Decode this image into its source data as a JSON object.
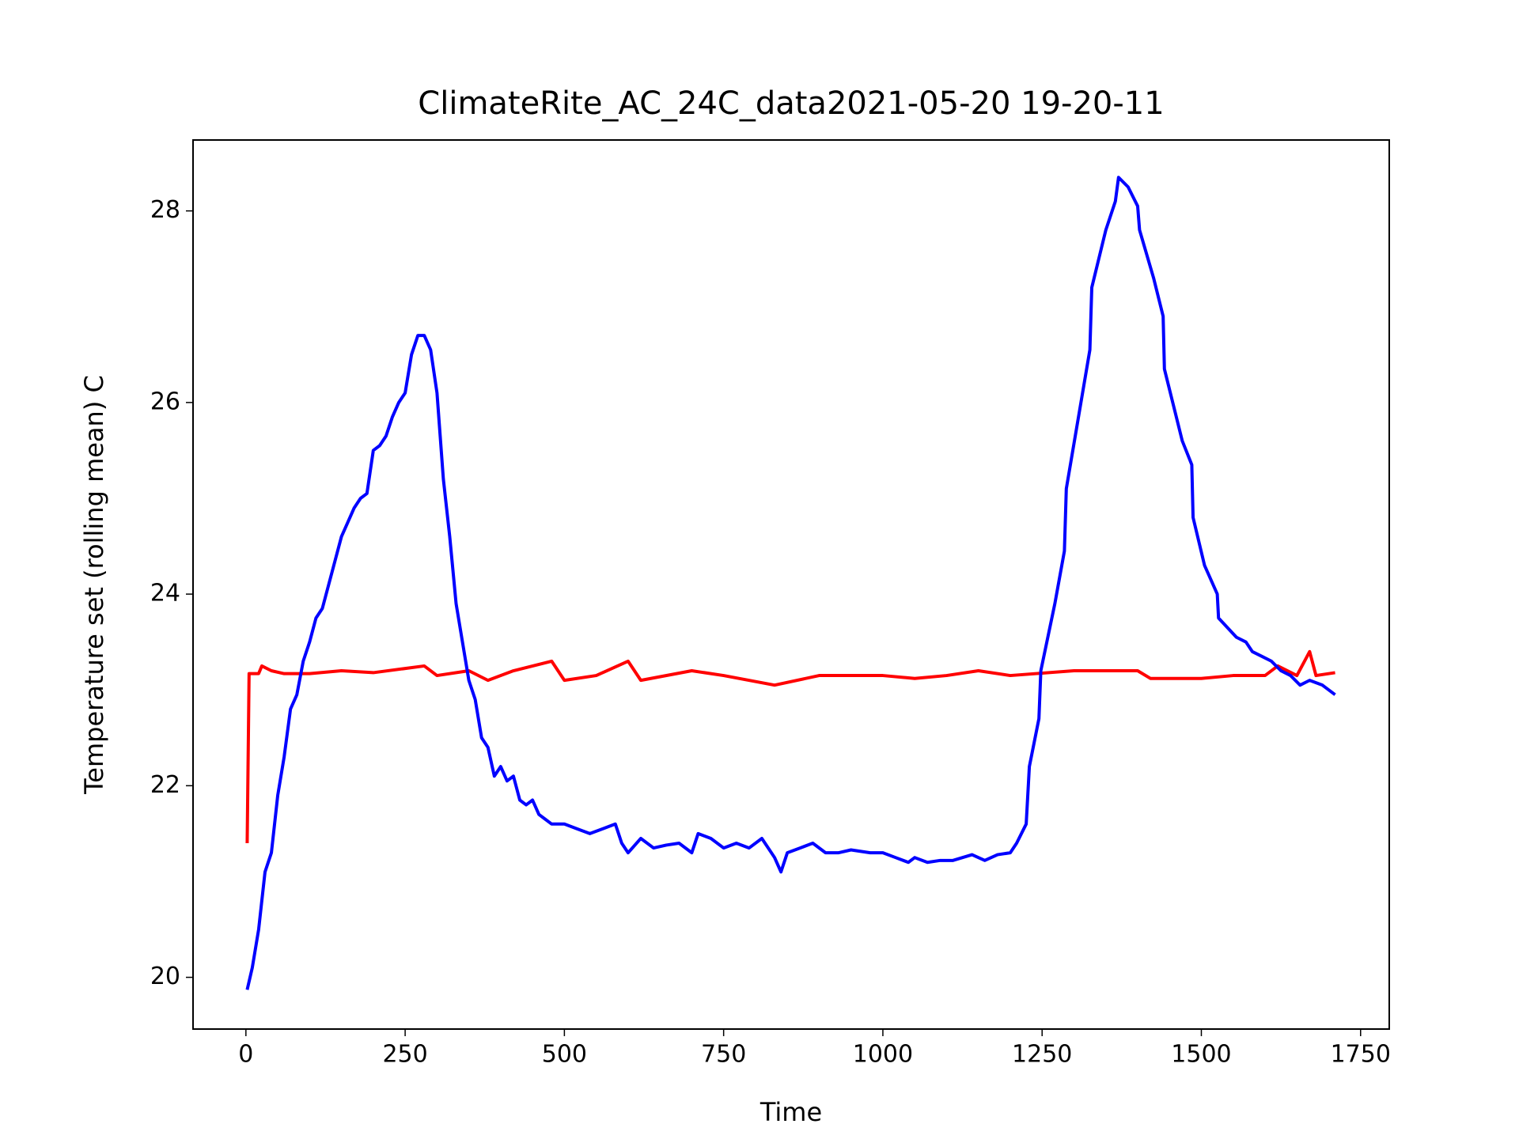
{
  "chart_data": {
    "type": "line",
    "title": "ClimateRite_AC_24C_data2021-05-20 19-20-11",
    "x_label": "Time",
    "y_label": "Temperature set (rolling mean) C",
    "xlim": [
      -83,
      1795
    ],
    "ylim": [
      19.46,
      28.74
    ],
    "xticks": [
      0,
      250,
      500,
      750,
      1000,
      1250,
      1500,
      1750
    ],
    "yticks": [
      20,
      22,
      24,
      26,
      28
    ],
    "series": [
      {
        "color": "#ff0000",
        "x": [
          2,
          5,
          20,
          25,
          40,
          60,
          100,
          150,
          200,
          280,
          300,
          350,
          380,
          420,
          480,
          500,
          550,
          600,
          620,
          700,
          750,
          830,
          900,
          1000,
          1050,
          1100,
          1150,
          1200,
          1300,
          1400,
          1420,
          1500,
          1550,
          1600,
          1620,
          1650,
          1670,
          1680,
          1710
        ],
        "values": [
          21.4,
          23.17,
          23.17,
          23.25,
          23.2,
          23.17,
          23.17,
          23.2,
          23.18,
          23.25,
          23.15,
          23.2,
          23.1,
          23.2,
          23.3,
          23.1,
          23.15,
          23.3,
          23.1,
          23.2,
          23.15,
          23.05,
          23.15,
          23.15,
          23.12,
          23.15,
          23.2,
          23.15,
          23.2,
          23.2,
          23.12,
          23.12,
          23.15,
          23.15,
          23.25,
          23.15,
          23.4,
          23.15,
          23.18
        ]
      },
      {
        "color": "#0000ff",
        "x": [
          2,
          10,
          20,
          30,
          40,
          50,
          60,
          70,
          80,
          90,
          100,
          110,
          120,
          130,
          140,
          150,
          160,
          170,
          180,
          190,
          200,
          210,
          220,
          230,
          240,
          250,
          260,
          270,
          280,
          290,
          300,
          310,
          320,
          330,
          340,
          350,
          360,
          370,
          380,
          390,
          400,
          410,
          420,
          430,
          440,
          450,
          460,
          470,
          480,
          500,
          520,
          540,
          560,
          580,
          590,
          600,
          620,
          640,
          660,
          680,
          700,
          710,
          730,
          750,
          770,
          790,
          810,
          830,
          840,
          850,
          870,
          890,
          910,
          930,
          950,
          980,
          1000,
          1020,
          1040,
          1050,
          1070,
          1090,
          1110,
          1140,
          1160,
          1180,
          1200,
          1210,
          1225,
          1230,
          1245,
          1248,
          1270,
          1285,
          1288,
          1325,
          1328,
          1350,
          1365,
          1370,
          1385,
          1400,
          1403,
          1425,
          1440,
          1442,
          1470,
          1485,
          1487,
          1505,
          1525,
          1527,
          1555,
          1570,
          1580,
          1595,
          1610,
          1625,
          1640,
          1655,
          1670,
          1690,
          1710
        ],
        "values": [
          19.87,
          20.1,
          20.5,
          21.1,
          21.3,
          21.9,
          22.3,
          22.8,
          22.95,
          23.3,
          23.5,
          23.75,
          23.85,
          24.1,
          24.35,
          24.6,
          24.75,
          24.9,
          25.0,
          25.05,
          25.5,
          25.55,
          25.65,
          25.85,
          26.0,
          26.1,
          26.5,
          26.7,
          26.7,
          26.55,
          26.1,
          25.2,
          24.6,
          23.9,
          23.5,
          23.1,
          22.9,
          22.5,
          22.4,
          22.1,
          22.2,
          22.05,
          22.1,
          21.85,
          21.8,
          21.85,
          21.7,
          21.65,
          21.6,
          21.6,
          21.55,
          21.5,
          21.55,
          21.6,
          21.4,
          21.3,
          21.45,
          21.35,
          21.38,
          21.4,
          21.3,
          21.5,
          21.45,
          21.35,
          21.4,
          21.35,
          21.45,
          21.25,
          21.1,
          21.3,
          21.35,
          21.4,
          21.3,
          21.3,
          21.33,
          21.3,
          21.3,
          21.25,
          21.2,
          21.25,
          21.2,
          21.22,
          21.22,
          21.28,
          21.22,
          21.28,
          21.3,
          21.4,
          21.6,
          22.2,
          22.7,
          23.2,
          23.9,
          24.45,
          25.1,
          26.55,
          27.2,
          27.8,
          28.1,
          28.35,
          28.25,
          28.05,
          27.8,
          27.3,
          26.9,
          26.35,
          25.6,
          25.35,
          24.8,
          24.3,
          24.0,
          23.75,
          23.55,
          23.5,
          23.4,
          23.35,
          23.3,
          23.2,
          23.15,
          23.05,
          23.1,
          23.05,
          22.95
        ]
      }
    ]
  }
}
